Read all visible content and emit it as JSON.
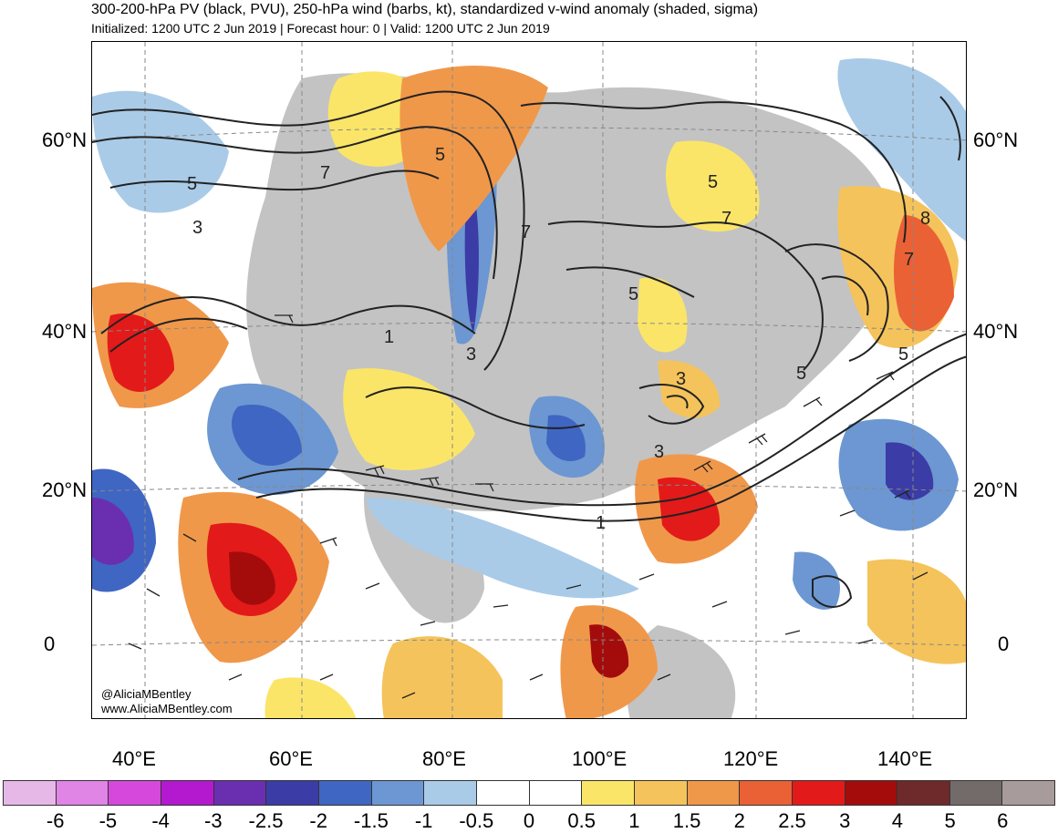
{
  "header": {
    "title": "300-200-hPa PV (black, PVU), 250-hPa wind (barbs, kt), standardized v-wind anomaly (shaded, sigma)",
    "subtitle": "Initialized: 1200 UTC 2 Jun 2019 | Forecast hour: 0 | Valid: 1200 UTC 2 Jun 2019"
  },
  "map": {
    "lat_labels": [
      "60°N",
      "40°N",
      "20°N",
      "0"
    ],
    "lon_labels": [
      "40°E",
      "60°E",
      "80°E",
      "100°E",
      "120°E",
      "140°E"
    ],
    "contour_labels": [
      "1",
      "3",
      "5",
      "7",
      "8"
    ],
    "credit_handle": "@AliciaMBentley",
    "credit_url": "www.AliciaMBentley.com"
  },
  "colorbar": {
    "labels": [
      "-6",
      "-5",
      "-4",
      "-3",
      "-2.5",
      "-2",
      "-1.5",
      "-1",
      "-0.5",
      "0",
      "0.5",
      "1",
      "1.5",
      "2",
      "2.5",
      "3",
      "4",
      "5",
      "6"
    ],
    "colors": [
      "#e6b8e8",
      "#e084e6",
      "#d648dc",
      "#b419d0",
      "#6a2fb0",
      "#3c3ca6",
      "#3f66c2",
      "#6c97d2",
      "#a9cbe8",
      "#ffffff",
      "#ffffff",
      "#fbe568",
      "#f5c35b",
      "#f0984a",
      "#ea6136",
      "#e31a1a",
      "#a40c0c",
      "#6e2a2a",
      "#736a6a",
      "#a89b9b"
    ]
  }
}
